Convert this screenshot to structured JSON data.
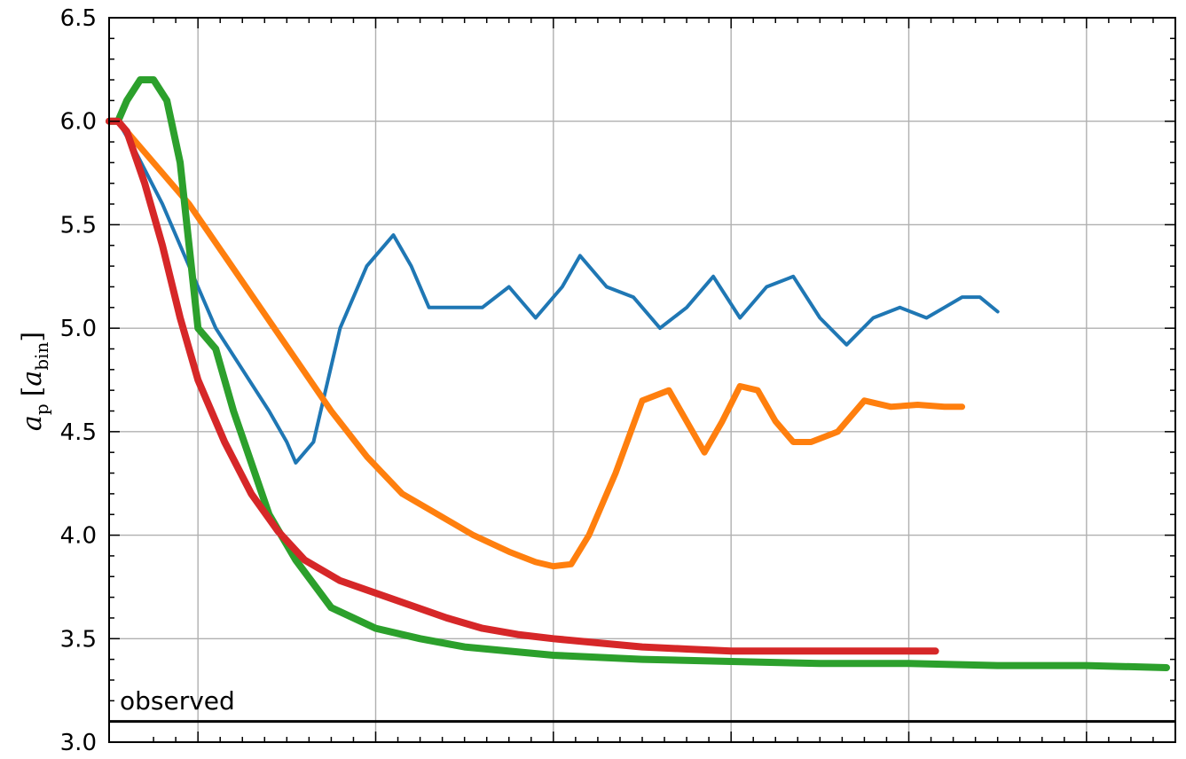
{
  "chart_data": {
    "type": "line",
    "ylabel": "a_p [a_bin]",
    "ylabel_parts": {
      "main": "a",
      "sub_main": "p",
      "open": "[",
      "unit": "a",
      "sub_unit": "bin",
      "close": "]"
    },
    "ylim": [
      3.0,
      6.5
    ],
    "yticks": [
      "3.0",
      "3.5",
      "4.0",
      "4.5",
      "5.0",
      "5.5",
      "6.0",
      "6.5"
    ],
    "xlim": [
      0,
      12
    ],
    "x_tick_labels_shown": false,
    "grid": true,
    "legend": "none",
    "observed_value": 3.1,
    "annotation": "observed",
    "series": [
      {
        "color": "#1f77b4",
        "x": [
          0.0,
          0.1,
          0.3,
          0.6,
          0.9,
          1.2,
          1.5,
          1.8,
          2.0,
          2.1,
          2.3,
          2.6,
          2.9,
          3.2,
          3.4,
          3.6,
          3.9,
          4.2,
          4.5,
          4.8,
          5.1,
          5.3,
          5.6,
          5.9,
          6.2,
          6.5,
          6.8,
          7.1,
          7.4,
          7.7,
          8.0,
          8.3,
          8.6,
          8.9,
          9.2,
          9.4,
          9.6,
          9.8,
          10.0
        ],
        "y": [
          6.0,
          6.0,
          5.85,
          5.6,
          5.3,
          5.0,
          4.8,
          4.6,
          4.45,
          4.35,
          4.45,
          5.0,
          5.3,
          5.45,
          5.3,
          5.1,
          5.1,
          5.1,
          5.2,
          5.05,
          5.2,
          5.35,
          5.2,
          5.15,
          5.0,
          5.1,
          5.25,
          5.05,
          5.2,
          5.25,
          5.05,
          4.92,
          5.05,
          5.1,
          5.05,
          5.1,
          5.15,
          5.15,
          5.08
        ]
      },
      {
        "color": "#ff7f0e",
        "x": [
          0.0,
          0.1,
          0.3,
          0.6,
          0.9,
          1.3,
          1.7,
          2.1,
          2.5,
          2.9,
          3.3,
          3.7,
          4.1,
          4.5,
          4.8,
          5.0,
          5.2,
          5.4,
          5.7,
          6.0,
          6.3,
          6.5,
          6.7,
          6.9,
          7.1,
          7.3,
          7.5,
          7.7,
          7.9,
          8.2,
          8.5,
          8.8,
          9.1,
          9.4,
          9.6
        ],
        "y": [
          6.0,
          6.0,
          5.9,
          5.75,
          5.6,
          5.35,
          5.1,
          4.85,
          4.6,
          4.38,
          4.2,
          4.1,
          4.0,
          3.92,
          3.87,
          3.85,
          3.86,
          4.0,
          4.3,
          4.65,
          4.7,
          4.55,
          4.4,
          4.55,
          4.72,
          4.7,
          4.55,
          4.45,
          4.45,
          4.5,
          4.65,
          4.62,
          4.63,
          4.62,
          4.62
        ]
      },
      {
        "color": "#2ca02c",
        "x": [
          0.0,
          0.1,
          0.2,
          0.35,
          0.5,
          0.65,
          0.8,
          1.0,
          1.2,
          1.4,
          1.6,
          1.8,
          2.1,
          2.5,
          3.0,
          3.5,
          4.0,
          5.0,
          6.0,
          7.0,
          8.0,
          9.0,
          10.0,
          11.0,
          11.9
        ],
        "y": [
          6.0,
          6.0,
          6.1,
          6.2,
          6.2,
          6.1,
          5.8,
          5.0,
          4.9,
          4.6,
          4.35,
          4.1,
          3.88,
          3.65,
          3.55,
          3.5,
          3.46,
          3.42,
          3.4,
          3.39,
          3.38,
          3.38,
          3.37,
          3.37,
          3.36
        ]
      },
      {
        "color": "#d62728",
        "x": [
          0.0,
          0.1,
          0.2,
          0.4,
          0.6,
          0.8,
          1.0,
          1.3,
          1.6,
          1.9,
          2.2,
          2.6,
          3.0,
          3.4,
          3.8,
          4.2,
          4.6,
          5.0,
          5.5,
          6.0,
          6.5,
          7.0,
          7.5,
          8.0,
          8.5,
          9.0,
          9.3
        ],
        "y": [
          6.0,
          6.0,
          5.95,
          5.7,
          5.4,
          5.05,
          4.75,
          4.45,
          4.2,
          4.02,
          3.88,
          3.78,
          3.72,
          3.66,
          3.6,
          3.55,
          3.52,
          3.5,
          3.48,
          3.46,
          3.45,
          3.44,
          3.44,
          3.44,
          3.44,
          3.44,
          3.44
        ]
      }
    ]
  }
}
